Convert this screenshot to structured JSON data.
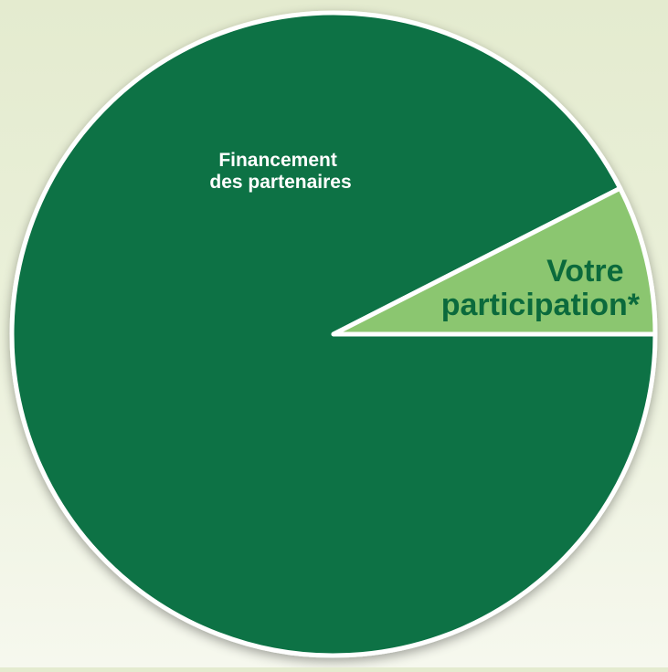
{
  "chart_data": {
    "type": "pie",
    "slices": [
      {
        "label_lines": [
          "Financement",
          "des partenaires"
        ],
        "value": 92.5,
        "color": "#087244"
      },
      {
        "label_lines": [
          "Votre",
          "participation*"
        ],
        "value": 7.5,
        "color": "#8bc66f"
      }
    ],
    "participation_label_color": "#0b6a3c",
    "stroke_color": "#ffffff",
    "background_color": "#eaf0d9"
  }
}
